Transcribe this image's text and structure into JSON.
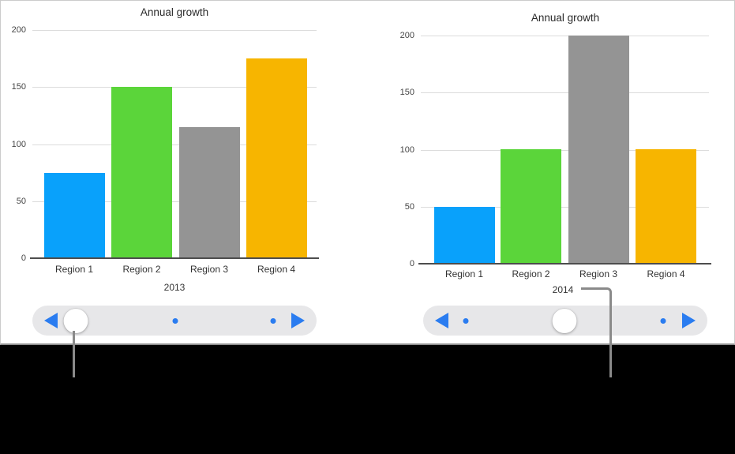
{
  "accent": {
    "slider_blue": "#2a7cf0",
    "callout_gray": "#8a8a8a",
    "gridline": "#dcdcdc",
    "axis_line": "#4d4d4d"
  },
  "chart_data": [
    {
      "type": "bar",
      "title": "Annual growth",
      "period_label": "2013",
      "categories": [
        "Region 1",
        "Region 2",
        "Region 3",
        "Region 4"
      ],
      "values": [
        75,
        150,
        115,
        175
      ],
      "bar_colors": [
        "#09a1fb",
        "#5bd53a",
        "#949494",
        "#f7b500"
      ],
      "xlabel": "",
      "ylabel": "",
      "ylim": [
        0,
        200
      ],
      "y_ticks": [
        200,
        150,
        100,
        50,
        0
      ],
      "grid": true,
      "legend": "none"
    },
    {
      "type": "bar",
      "title": "Annual growth",
      "period_label": "2014",
      "categories": [
        "Region 1",
        "Region 2",
        "Region 3",
        "Region 4"
      ],
      "values": [
        50,
        100,
        200,
        100
      ],
      "bar_colors": [
        "#09a1fb",
        "#5bd53a",
        "#949494",
        "#f7b500"
      ],
      "xlabel": "",
      "ylabel": "",
      "ylim": [
        0,
        200
      ],
      "y_ticks": [
        200,
        150,
        100,
        50,
        0
      ],
      "grid": true,
      "legend": "none"
    }
  ],
  "sliders": [
    {
      "name": "year-scrubber-2013",
      "stop_count": 3,
      "thumb_stop_index": 0
    },
    {
      "name": "year-scrubber-2014",
      "stop_count": 3,
      "thumb_stop_index": 1
    }
  ]
}
